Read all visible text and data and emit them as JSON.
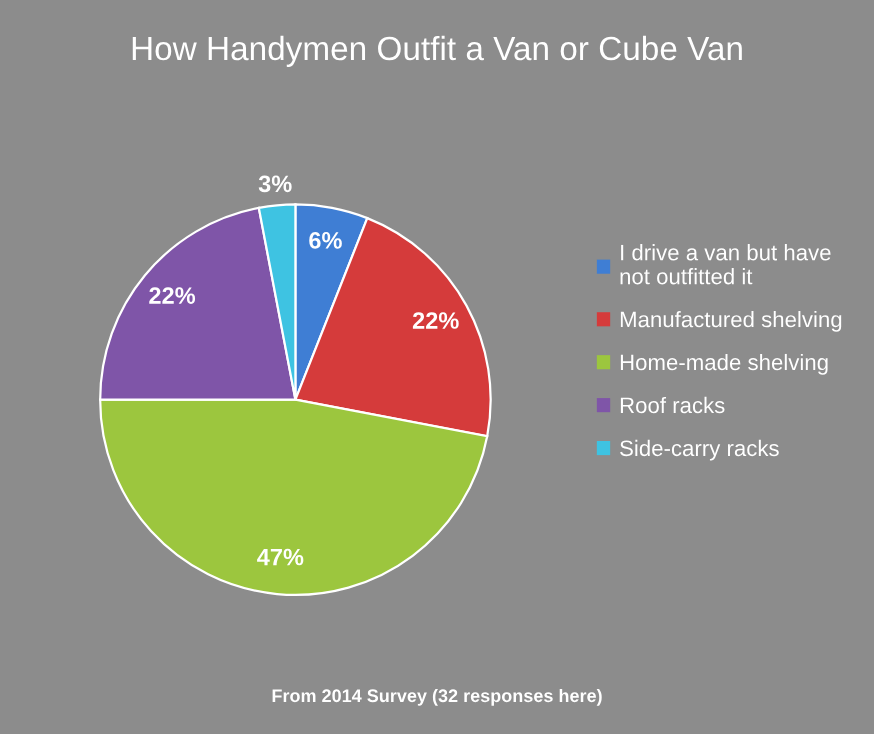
{
  "chart_data": {
    "type": "pie",
    "title": "How Handymen Outfit a Van or Cube Van",
    "categories": [
      "I drive a van but have\nnot outfitted it",
      "Manufactured shelving",
      "Home-made shelving",
      "Roof racks",
      "Side-carry racks"
    ],
    "values": [
      6,
      22,
      47,
      22,
      3
    ],
    "value_labels": [
      "6%",
      "22%",
      "47%",
      "22%",
      "3%"
    ],
    "colors": [
      "#3f7ed4",
      "#d53b3b",
      "#9cc63e",
      "#7f55a8",
      "#3ec3e2"
    ],
    "legend": "right",
    "annotations": [
      "From 2014 Survey (32 responses here)"
    ]
  }
}
